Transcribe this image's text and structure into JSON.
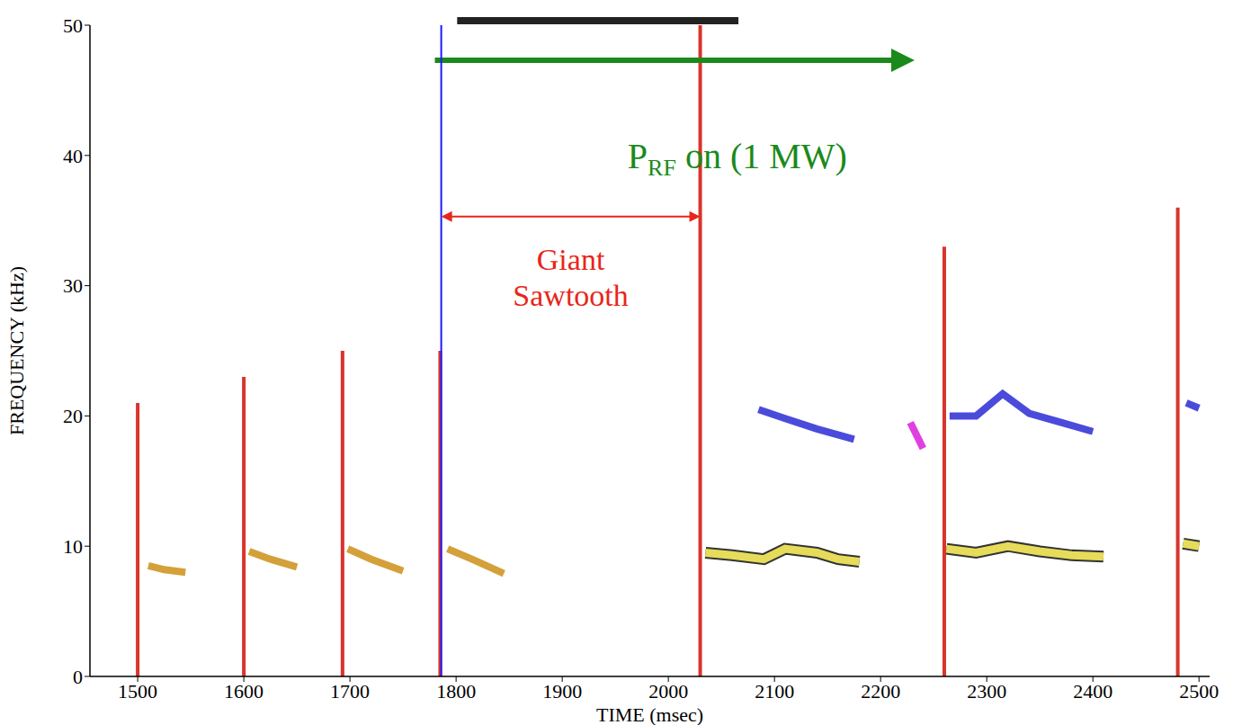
{
  "chart_data": {
    "type": "line",
    "x_label": "TIME (msec)",
    "y_label": "FREQUENCY (kHz)",
    "xlim": [
      1455,
      2510
    ],
    "xticks": [
      1500,
      1600,
      1700,
      1800,
      1900,
      2000,
      2100,
      2200,
      2300,
      2400,
      2500
    ],
    "ylim": [
      0,
      50
    ],
    "yticks": [
      0,
      10,
      20,
      30,
      40,
      50
    ],
    "grid": false,
    "series": [
      {
        "type": "line",
        "color": "#d4a03a",
        "x": [
          1510,
          1525,
          1545,
          1550,
          1605,
          1625,
          1650,
          1655,
          1698,
          1720,
          1750,
          1755,
          1792,
          1815,
          1845
        ],
        "values": [
          8.5,
          8.2,
          8.0,
          null,
          9.6,
          9.0,
          8.4,
          null,
          9.8,
          9.0,
          8.1,
          null,
          9.8,
          9.0,
          7.9
        ]
      },
      {
        "type": "band",
        "color": "#e6dc5a",
        "x": [
          2035,
          2060,
          2090,
          2110,
          2140,
          2160,
          2180,
          2200,
          2262,
          2290,
          2320,
          2350,
          2380,
          2410,
          2420,
          2485,
          2500
        ],
        "values": [
          9.5,
          9.3,
          9.0,
          9.8,
          9.5,
          9.0,
          8.8,
          null,
          9.8,
          9.5,
          10.0,
          9.6,
          9.3,
          9.2,
          null,
          10.2,
          10.0
        ]
      },
      {
        "type": "line",
        "color": "#4b4bdb",
        "x": [
          2085,
          2110,
          2140,
          2175,
          2200,
          2265,
          2290,
          2315,
          2340,
          2370,
          2400,
          2420,
          2488,
          2500
        ],
        "values": [
          20.5,
          19.8,
          19.0,
          18.2,
          null,
          20.0,
          20.0,
          21.7,
          20.2,
          19.5,
          18.8,
          null,
          21.0,
          20.6
        ]
      },
      {
        "type": "line",
        "color": "#e040e0",
        "x": [
          2228,
          2240
        ],
        "values": [
          19.5,
          17.5
        ]
      },
      {
        "type": "spike",
        "color": "#d9342b",
        "x": [
          1500,
          1600,
          1693,
          1785,
          2030,
          2260,
          2480
        ],
        "values": [
          21,
          23,
          25,
          25,
          50,
          33,
          36
        ]
      }
    ],
    "annotations": [
      {
        "type": "bar",
        "color": "#222222",
        "x": [
          1801,
          2066
        ],
        "y": 50
      },
      {
        "type": "arrow",
        "color": "#1a8a1a",
        "x": [
          1780,
          2232
        ],
        "y": 47.3
      },
      {
        "type": "text",
        "text": "P",
        "subscript": "RF",
        "suffix": " on (1 MW)",
        "color": "#1a8a1a",
        "x": 2065,
        "y": 39.0
      },
      {
        "type": "vline",
        "color": "#1a1aff",
        "x": 1786,
        "y": [
          0,
          50
        ]
      },
      {
        "type": "double_arrow",
        "color": "#e8261a",
        "x": [
          1786,
          2030
        ],
        "y": 35.3
      },
      {
        "type": "text",
        "text": "Giant Sawtooth",
        "color": "#e8261a",
        "x": 1908,
        "y": 31.2
      }
    ]
  }
}
